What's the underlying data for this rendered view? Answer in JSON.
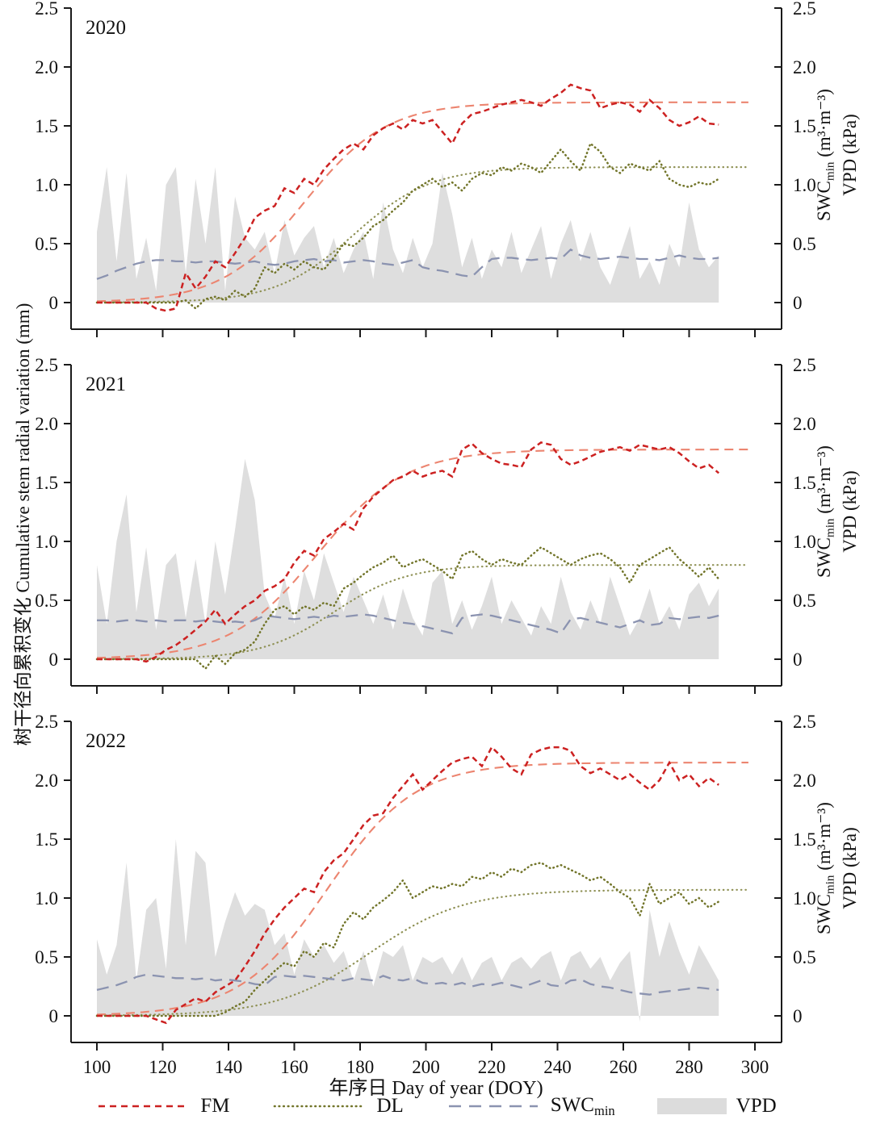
{
  "figure": {
    "left_axis_label": "树干径向累积变化 Cumulative stem radial variation (mm)",
    "x_axis_label": "年序日 Day of year (DOY)",
    "right_axis_label": {
      "swc_prefix": "SWC",
      "swc_sub": "min",
      "swc_units": " (m³·m⁻³)",
      "vpd_line": "VPD (kPa)"
    },
    "colors": {
      "fm_raw": "#cc2121",
      "fm_fit": "#ec8570",
      "dl_raw": "#72752a",
      "dl_fit": "#8f9155",
      "swc": "#8b93b0",
      "vpd_fill": "#dcdcdc",
      "axis": "#1a1a1a",
      "text": "#111111"
    },
    "legend": {
      "fm": "FM",
      "dl": "DL",
      "swc_prefix": "SWC",
      "swc_sub": "min",
      "vpd": "VPD"
    }
  },
  "axes": {
    "x_ticks": [
      100,
      120,
      140,
      160,
      180,
      200,
      220,
      240,
      260,
      280,
      300
    ],
    "y_ticks": [
      0,
      0.5,
      1.0,
      1.5,
      2.0,
      2.5
    ],
    "y_tick_labels": [
      "0",
      "0.5",
      "1.0",
      "1.5",
      "2.0",
      "2.5"
    ],
    "x_range": [
      92,
      308
    ],
    "y_range_left": "Cumulative stem radial variation (mm), 0–2.5",
    "y_range_right": "SWCmin / VPD, 0–2.5"
  },
  "chart_data": [
    {
      "type": "line",
      "year_label": "2020",
      "x_start": 100,
      "x_step": 3,
      "series": {
        "fm_raw": [
          0,
          0,
          0,
          0,
          0,
          0,
          -0.05,
          -0.07,
          -0.05,
          0.25,
          0.12,
          0.22,
          0.35,
          0.3,
          0.42,
          0.55,
          0.72,
          0.78,
          0.82,
          0.97,
          0.93,
          1.05,
          1.0,
          1.13,
          1.22,
          1.3,
          1.35,
          1.3,
          1.42,
          1.48,
          1.52,
          1.47,
          1.55,
          1.52,
          1.55,
          1.45,
          1.35,
          1.52,
          1.6,
          1.62,
          1.65,
          1.68,
          1.7,
          1.72,
          1.7,
          1.67,
          1.73,
          1.78,
          1.85,
          1.82,
          1.8,
          1.65,
          1.68,
          1.7,
          1.68,
          1.62,
          1.72,
          1.65,
          1.55,
          1.5,
          1.53,
          1.58,
          1.52,
          1.51
        ],
        "dl_raw": [
          0,
          0,
          0,
          0,
          0,
          0,
          0,
          0,
          0,
          0.02,
          -0.05,
          0.03,
          0.05,
          0.02,
          0.1,
          0.05,
          0.12,
          0.3,
          0.25,
          0.33,
          0.28,
          0.35,
          0.3,
          0.28,
          0.38,
          0.5,
          0.48,
          0.55,
          0.65,
          0.7,
          0.78,
          0.85,
          0.95,
          1.0,
          1.05,
          0.98,
          1.02,
          0.95,
          1.05,
          1.1,
          1.08,
          1.15,
          1.12,
          1.18,
          1.15,
          1.1,
          1.2,
          1.3,
          1.2,
          1.12,
          1.35,
          1.28,
          1.15,
          1.1,
          1.18,
          1.15,
          1.12,
          1.2,
          1.05,
          1.0,
          0.98,
          1.02,
          1.0,
          1.05
        ],
        "swc": [
          0.2,
          0.23,
          0.27,
          0.3,
          0.33,
          0.35,
          0.36,
          0.36,
          0.35,
          0.35,
          0.34,
          0.35,
          0.35,
          0.34,
          0.33,
          0.34,
          0.35,
          0.33,
          0.32,
          0.33,
          0.35,
          0.36,
          0.37,
          0.35,
          0.36,
          0.34,
          0.35,
          0.36,
          0.35,
          0.33,
          0.32,
          0.34,
          0.36,
          0.3,
          0.28,
          0.27,
          0.25,
          0.23,
          0.22,
          0.3,
          0.37,
          0.38,
          0.38,
          0.37,
          0.36,
          0.37,
          0.38,
          0.37,
          0.45,
          0.4,
          0.38,
          0.37,
          0.38,
          0.39,
          0.38,
          0.37,
          0.37,
          0.36,
          0.38,
          0.4,
          0.38,
          0.37,
          0.37,
          0.38
        ],
        "vpd": [
          0.6,
          1.15,
          0.35,
          1.1,
          0.2,
          0.55,
          0.1,
          1.0,
          1.15,
          0.25,
          1.05,
          0.5,
          1.15,
          0.1,
          0.9,
          0.55,
          0.45,
          0.6,
          0.25,
          0.7,
          0.4,
          0.55,
          0.65,
          0.3,
          0.55,
          0.25,
          0.45,
          0.6,
          0.2,
          0.85,
          0.45,
          0.25,
          0.55,
          0.3,
          0.5,
          1.1,
          0.75,
          0.3,
          0.55,
          0.2,
          0.45,
          0.3,
          0.6,
          0.25,
          0.45,
          0.65,
          0.2,
          0.5,
          0.7,
          0.35,
          0.6,
          0.3,
          0.15,
          0.4,
          0.65,
          0.2,
          0.35,
          0.15,
          0.5,
          0.3,
          0.85,
          0.45,
          0.3,
          0.4
        ]
      },
      "fits": {
        "fm": {
          "L": 1.7,
          "k": 0.08,
          "x0": 163
        },
        "dl": {
          "L": 1.15,
          "k": 0.085,
          "x0": 178
        }
      }
    },
    {
      "type": "line",
      "year_label": "2021",
      "x_start": 100,
      "x_step": 3,
      "series": {
        "fm_raw": [
          0,
          0,
          0,
          0,
          0,
          -0.02,
          0.02,
          0.08,
          0.12,
          0.18,
          0.25,
          0.32,
          0.42,
          0.3,
          0.38,
          0.45,
          0.5,
          0.58,
          0.62,
          0.68,
          0.82,
          0.92,
          0.88,
          1.02,
          1.08,
          1.15,
          1.1,
          1.28,
          1.38,
          1.45,
          1.52,
          1.55,
          1.6,
          1.55,
          1.58,
          1.6,
          1.55,
          1.78,
          1.83,
          1.75,
          1.7,
          1.66,
          1.65,
          1.63,
          1.78,
          1.84,
          1.82,
          1.7,
          1.65,
          1.68,
          1.72,
          1.76,
          1.78,
          1.8,
          1.77,
          1.82,
          1.8,
          1.78,
          1.8,
          1.75,
          1.68,
          1.62,
          1.65,
          1.58
        ],
        "dl_raw": [
          0,
          0,
          0,
          0,
          0,
          0,
          0,
          0,
          0,
          0,
          0,
          -0.08,
          0.03,
          -0.04,
          0.05,
          0.08,
          0.15,
          0.3,
          0.42,
          0.45,
          0.38,
          0.45,
          0.42,
          0.48,
          0.45,
          0.6,
          0.65,
          0.72,
          0.78,
          0.82,
          0.88,
          0.78,
          0.82,
          0.85,
          0.8,
          0.75,
          0.68,
          0.88,
          0.92,
          0.85,
          0.8,
          0.85,
          0.82,
          0.8,
          0.88,
          0.95,
          0.9,
          0.85,
          0.8,
          0.85,
          0.88,
          0.9,
          0.85,
          0.78,
          0.65,
          0.8,
          0.85,
          0.9,
          0.95,
          0.85,
          0.78,
          0.7,
          0.78,
          0.68
        ],
        "swc": [
          0.33,
          0.33,
          0.32,
          0.33,
          0.33,
          0.32,
          0.33,
          0.32,
          0.33,
          0.33,
          0.32,
          0.33,
          0.32,
          0.31,
          0.32,
          0.31,
          0.33,
          0.37,
          0.36,
          0.35,
          0.34,
          0.35,
          0.36,
          0.35,
          0.37,
          0.36,
          0.37,
          0.38,
          0.37,
          0.35,
          0.33,
          0.31,
          0.3,
          0.28,
          0.26,
          0.24,
          0.22,
          0.35,
          0.37,
          0.38,
          0.37,
          0.35,
          0.33,
          0.31,
          0.29,
          0.27,
          0.25,
          0.22,
          0.34,
          0.35,
          0.33,
          0.31,
          0.29,
          0.27,
          0.3,
          0.33,
          0.29,
          0.3,
          0.35,
          0.34,
          0.35,
          0.36,
          0.35,
          0.37
        ],
        "vpd": [
          0.8,
          0.3,
          1.0,
          1.4,
          0.4,
          0.95,
          0.25,
          0.8,
          0.9,
          0.35,
          0.85,
          0.3,
          1.0,
          0.55,
          1.1,
          1.7,
          1.35,
          0.55,
          0.35,
          0.7,
          0.3,
          0.75,
          0.5,
          0.9,
          0.65,
          0.4,
          0.7,
          0.5,
          0.3,
          0.55,
          0.25,
          0.6,
          0.35,
          0.2,
          0.65,
          0.75,
          0.3,
          0.5,
          0.25,
          0.45,
          0.7,
          0.3,
          0.5,
          0.35,
          0.2,
          0.45,
          0.3,
          0.7,
          0.4,
          0.25,
          0.5,
          0.3,
          0.7,
          0.45,
          0.2,
          0.35,
          0.6,
          0.3,
          0.45,
          0.25,
          0.55,
          0.65,
          0.45,
          0.6
        ]
      },
      "fits": {
        "fm": {
          "L": 1.78,
          "k": 0.075,
          "x0": 167
        },
        "dl": {
          "L": 0.8,
          "k": 0.09,
          "x0": 172
        }
      }
    },
    {
      "type": "line",
      "year_label": "2022",
      "x_start": 100,
      "x_step": 3,
      "series": {
        "fm_raw": [
          0,
          0,
          0,
          0,
          0,
          0,
          -0.03,
          -0.06,
          0.05,
          0.1,
          0.15,
          0.12,
          0.2,
          0.25,
          0.3,
          0.42,
          0.55,
          0.7,
          0.82,
          0.92,
          1.0,
          1.08,
          1.05,
          1.22,
          1.32,
          1.38,
          1.5,
          1.62,
          1.7,
          1.72,
          1.85,
          1.95,
          2.05,
          1.92,
          2.0,
          2.08,
          2.15,
          2.18,
          2.2,
          2.12,
          2.28,
          2.2,
          2.1,
          2.05,
          2.22,
          2.26,
          2.28,
          2.28,
          2.25,
          2.12,
          2.06,
          2.1,
          2.05,
          2.0,
          2.05,
          1.98,
          1.92,
          2.0,
          2.15,
          2.0,
          2.05,
          1.95,
          2.02,
          1.96
        ],
        "dl_raw": [
          0,
          0,
          0,
          0,
          0,
          0,
          0,
          0,
          0,
          0,
          0,
          0,
          0,
          0.03,
          0.08,
          0.12,
          0.22,
          0.3,
          0.38,
          0.45,
          0.42,
          0.55,
          0.5,
          0.62,
          0.58,
          0.78,
          0.88,
          0.82,
          0.92,
          0.98,
          1.05,
          1.15,
          1.0,
          1.05,
          1.1,
          1.08,
          1.12,
          1.1,
          1.18,
          1.16,
          1.22,
          1.18,
          1.25,
          1.22,
          1.28,
          1.3,
          1.25,
          1.28,
          1.24,
          1.2,
          1.15,
          1.18,
          1.12,
          1.05,
          1.0,
          0.85,
          1.12,
          0.95,
          1.0,
          1.05,
          0.95,
          1.0,
          0.92,
          0.97
        ],
        "swc": [
          0.22,
          0.24,
          0.26,
          0.29,
          0.33,
          0.35,
          0.34,
          0.33,
          0.32,
          0.32,
          0.31,
          0.32,
          0.3,
          0.31,
          0.3,
          0.29,
          0.27,
          0.26,
          0.33,
          0.34,
          0.33,
          0.34,
          0.33,
          0.32,
          0.31,
          0.3,
          0.32,
          0.31,
          0.3,
          0.34,
          0.31,
          0.3,
          0.32,
          0.28,
          0.27,
          0.28,
          0.26,
          0.28,
          0.25,
          0.27,
          0.26,
          0.28,
          0.26,
          0.24,
          0.27,
          0.3,
          0.26,
          0.25,
          0.3,
          0.31,
          0.27,
          0.25,
          0.24,
          0.22,
          0.2,
          0.19,
          0.18,
          0.2,
          0.21,
          0.22,
          0.23,
          0.24,
          0.23,
          0.22
        ],
        "vpd": [
          0.65,
          0.35,
          0.6,
          1.3,
          0.3,
          0.9,
          1.0,
          0.4,
          1.5,
          0.6,
          1.4,
          1.3,
          0.5,
          0.8,
          1.05,
          0.85,
          0.95,
          0.9,
          0.6,
          0.7,
          0.35,
          0.65,
          0.5,
          0.6,
          0.45,
          0.55,
          0.3,
          0.55,
          0.25,
          0.55,
          0.5,
          0.6,
          0.3,
          0.5,
          0.45,
          0.5,
          0.35,
          0.5,
          0.3,
          0.45,
          0.5,
          0.3,
          0.45,
          0.5,
          0.4,
          0.5,
          0.55,
          0.3,
          0.5,
          0.55,
          0.4,
          0.5,
          0.3,
          0.45,
          0.55,
          -0.05,
          0.9,
          0.5,
          0.8,
          0.55,
          0.35,
          0.6,
          0.45,
          0.3
        ]
      },
      "fits": {
        "fm": {
          "L": 2.15,
          "k": 0.075,
          "x0": 170
        },
        "dl": {
          "L": 1.07,
          "k": 0.07,
          "x0": 183
        }
      }
    }
  ]
}
